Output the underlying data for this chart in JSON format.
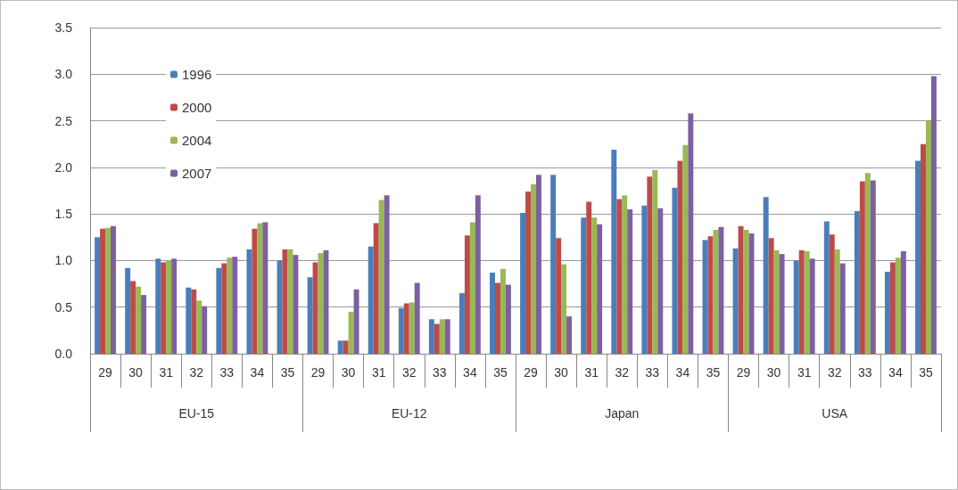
{
  "chart_data": {
    "type": "bar",
    "categories": [
      "29",
      "30",
      "31",
      "32",
      "33",
      "34",
      "35",
      "29",
      "30",
      "31",
      "32",
      "33",
      "34",
      "35",
      "29",
      "30",
      "31",
      "32",
      "33",
      "34",
      "35",
      "29",
      "30",
      "31",
      "32",
      "33",
      "34",
      "35"
    ],
    "annotations": [
      "EU-15",
      "EU-12",
      "Japan",
      "USA"
    ],
    "series": [
      {
        "name": "1996",
        "color": "#4a7ebb",
        "values": [
          1.25,
          0.92,
          1.02,
          0.71,
          0.92,
          1.12,
          1.0,
          0.82,
          0.14,
          1.15,
          0.49,
          0.37,
          0.65,
          0.87,
          1.51,
          1.92,
          1.46,
          2.19,
          1.59,
          1.78,
          1.22,
          1.13,
          1.68,
          1.0,
          1.42,
          1.53,
          0.88,
          2.07
        ]
      },
      {
        "name": "2000",
        "color": "#be4b48",
        "values": [
          1.34,
          0.78,
          0.98,
          0.69,
          0.97,
          1.34,
          1.12,
          0.98,
          0.14,
          1.4,
          0.54,
          0.32,
          1.27,
          0.76,
          1.74,
          1.24,
          1.63,
          1.66,
          1.9,
          2.07,
          1.26,
          1.37,
          1.24,
          1.11,
          1.28,
          1.85,
          0.98,
          2.25
        ]
      },
      {
        "name": "2004",
        "color": "#98b954",
        "values": [
          1.35,
          0.72,
          1.0,
          0.57,
          1.03,
          1.4,
          1.12,
          1.08,
          0.45,
          1.65,
          0.55,
          0.37,
          1.41,
          0.91,
          1.82,
          0.96,
          1.46,
          1.7,
          1.97,
          2.24,
          1.33,
          1.33,
          1.11,
          1.1,
          1.12,
          1.94,
          1.03,
          2.5
        ]
      },
      {
        "name": "2007",
        "color": "#7d60a0",
        "values": [
          1.37,
          0.63,
          1.02,
          0.51,
          1.04,
          1.41,
          1.06,
          1.11,
          0.69,
          1.7,
          0.76,
          0.37,
          1.7,
          0.74,
          1.92,
          0.4,
          1.39,
          1.55,
          1.56,
          2.58,
          1.36,
          1.29,
          1.07,
          1.02,
          0.97,
          1.86,
          1.1,
          2.98
        ]
      }
    ],
    "ylim": [
      0,
      3.5
    ],
    "yticks": [
      {
        "value": 0,
        "label": "0.0"
      },
      0.5,
      {
        "value": 1,
        "label": "1.0"
      },
      1.5,
      {
        "value": 2,
        "label": "2.0"
      },
      2.5,
      {
        "value": 3,
        "label": "3.0"
      },
      3.5
    ],
    "grid": "y",
    "legend": "top left"
  }
}
